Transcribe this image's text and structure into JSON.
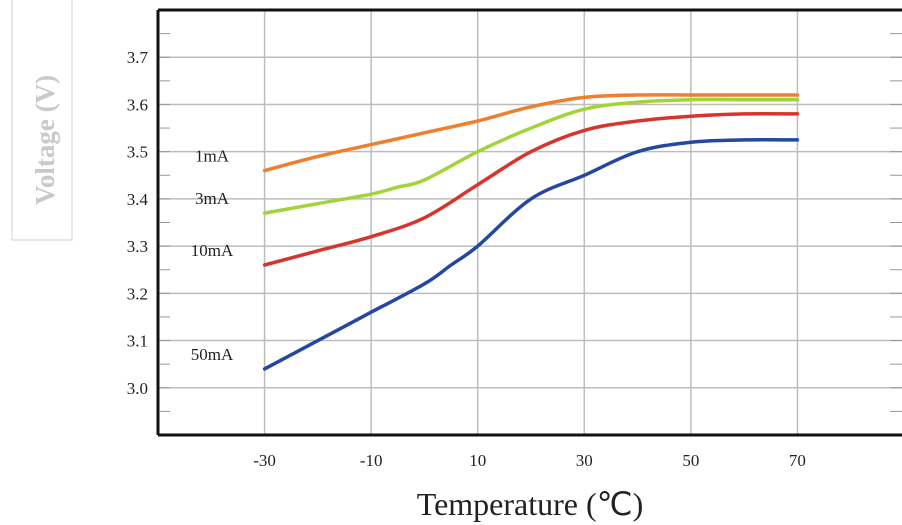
{
  "chart_data": {
    "type": "line",
    "title": "",
    "xlabel": "Temperature (℃)",
    "ylabel": "Voltage (V)",
    "xlim": [
      -50,
      90
    ],
    "ylim": [
      2.9,
      3.8
    ],
    "x_ticks": [
      -30,
      -10,
      10,
      30,
      50,
      70
    ],
    "x_tick_labels": [
      "-30",
      "-10",
      "10",
      "30",
      "50",
      "70"
    ],
    "y_ticks": [
      3.0,
      3.1,
      3.2,
      3.3,
      3.4,
      3.5,
      3.6,
      3.7
    ],
    "y_tick_labels": [
      "3.0",
      "3.1",
      "3.2",
      "3.3",
      "3.4",
      "3.5",
      "3.6",
      "3.7"
    ],
    "grid": true,
    "series": [
      {
        "name": "1mA",
        "color": "#ee7f2d",
        "x": [
          -30,
          -20,
          -10,
          0,
          10,
          20,
          30,
          40,
          50,
          60,
          70
        ],
        "y": [
          3.46,
          3.49,
          3.515,
          3.54,
          3.565,
          3.595,
          3.615,
          3.62,
          3.62,
          3.62,
          3.62
        ]
      },
      {
        "name": "3mA",
        "color": "#a3d33a",
        "x": [
          -30,
          -20,
          -10,
          -5,
          0,
          10,
          20,
          30,
          40,
          50,
          60,
          70
        ],
        "y": [
          3.37,
          3.39,
          3.41,
          3.425,
          3.44,
          3.5,
          3.55,
          3.59,
          3.605,
          3.61,
          3.61,
          3.61
        ]
      },
      {
        "name": "10mA",
        "color": "#d7352c",
        "x": [
          -30,
          -20,
          -10,
          0,
          10,
          20,
          30,
          40,
          50,
          60,
          70
        ],
        "y": [
          3.26,
          3.29,
          3.32,
          3.36,
          3.43,
          3.5,
          3.545,
          3.565,
          3.575,
          3.58,
          3.58
        ]
      },
      {
        "name": "50mA",
        "color": "#2448a0",
        "x": [
          -30,
          -20,
          -10,
          0,
          5,
          10,
          20,
          30,
          40,
          50,
          60,
          70
        ],
        "y": [
          3.04,
          3.1,
          3.16,
          3.22,
          3.26,
          3.3,
          3.4,
          3.45,
          3.5,
          3.52,
          3.525,
          3.525
        ]
      }
    ]
  }
}
